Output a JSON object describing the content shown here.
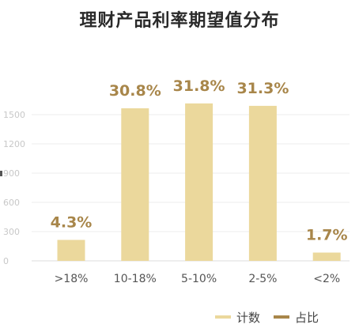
{
  "chart_data": {
    "type": "bar",
    "title": "理财产品利率期望值分布",
    "categories": [
      ">18%",
      "10-18%",
      "5-10%",
      "2-5%",
      "<2%"
    ],
    "series": [
      {
        "name": "计数",
        "values": [
          215,
          1565,
          1615,
          1590,
          85
        ]
      },
      {
        "name": "占比",
        "values": [
          "4.3%",
          "30.8%",
          "31.8%",
          "31.3%",
          "1.7%"
        ]
      }
    ],
    "yticks": [
      "0",
      "300",
      "600",
      "900",
      "1200",
      "1500"
    ],
    "ylim": [
      0,
      1800
    ],
    "grid": true,
    "legend": "bottom-right",
    "colors": {
      "bar": "#ebd89c",
      "label": "#a8864a",
      "legend_line_count": "#ebd89c",
      "legend_line_ratio": "#a8864a",
      "grid": "#eeeeee",
      "axis": "#dddddd"
    }
  }
}
